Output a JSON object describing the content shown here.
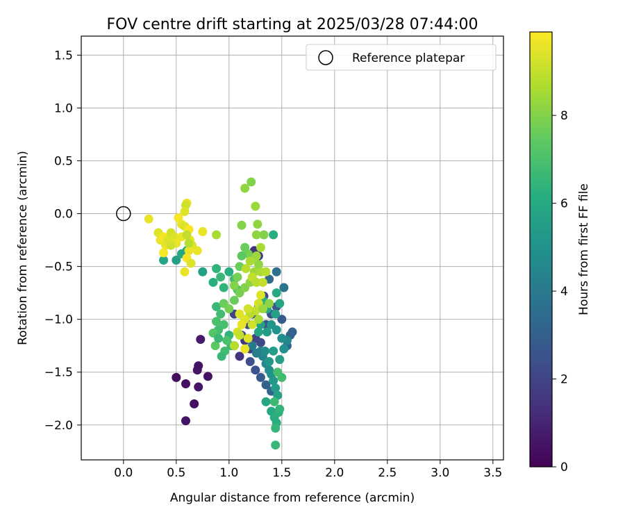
{
  "chart_data": {
    "type": "scatter",
    "title": "FOV centre drift starting at 2025/03/28 07:44:00",
    "xlabel": "Angular distance from reference (arcmin)",
    "ylabel": "Rotation from reference (arcmin)",
    "xlim": [
      -0.4,
      3.6
    ],
    "ylim": [
      -2.33,
      1.68
    ],
    "x_ticks": [
      0.0,
      0.5,
      1.0,
      1.5,
      2.0,
      2.5,
      3.0,
      3.5
    ],
    "x_tick_labels": [
      "0.0",
      "0.5",
      "1.0",
      "1.5",
      "2.0",
      "2.5",
      "3.0",
      "3.5"
    ],
    "y_ticks": [
      1.5,
      1.0,
      0.5,
      0.0,
      -0.5,
      -1.0,
      -1.5,
      -2.0
    ],
    "y_tick_labels": [
      "1.5",
      "1.0",
      "0.5",
      "0.0",
      "−0.5",
      "−1.0",
      "−1.5",
      "−2.0"
    ],
    "grid": true,
    "legend": {
      "position": "top-right",
      "entries": [
        "Reference platepar"
      ]
    },
    "reference_point": {
      "x": 0.0,
      "y": 0.0
    },
    "colormap": "viridis",
    "colorbar": {
      "label": "Hours from first FF file",
      "min": 0,
      "max": 9.9,
      "ticks": [
        0,
        2,
        4,
        6,
        8
      ],
      "tick_labels": [
        "0",
        "2",
        "4",
        "6",
        "8"
      ]
    },
    "points": [
      [
        0.5,
        -1.55,
        0.3
      ],
      [
        0.59,
        -1.61,
        0.4
      ],
      [
        0.59,
        -1.96,
        0.5
      ],
      [
        0.67,
        -1.8,
        0.4
      ],
      [
        0.7,
        -1.48,
        0.6
      ],
      [
        0.71,
        -1.44,
        0.5
      ],
      [
        0.71,
        -1.64,
        0.6
      ],
      [
        0.73,
        -1.19,
        0.7
      ],
      [
        0.8,
        -1.54,
        0.5
      ],
      [
        1.05,
        -1.25,
        1.2
      ],
      [
        1.1,
        -1.35,
        1.5
      ],
      [
        1.15,
        -1.2,
        1.6
      ],
      [
        1.2,
        -1.28,
        1.8
      ],
      [
        1.25,
        -1.18,
        2.0
      ],
      [
        1.3,
        -1.22,
        2.2
      ],
      [
        1.35,
        -1.05,
        2.3
      ],
      [
        1.4,
        -0.95,
        2.5
      ],
      [
        1.45,
        -0.88,
        2.6
      ],
      [
        1.5,
        -1.0,
        2.8
      ],
      [
        1.58,
        -1.15,
        3.0
      ],
      [
        1.6,
        -1.12,
        3.1
      ],
      [
        1.55,
        -1.25,
        3.2
      ],
      [
        1.2,
        -1.4,
        2.4
      ],
      [
        1.25,
        -1.48,
        2.6
      ],
      [
        1.3,
        -1.55,
        2.8
      ],
      [
        1.35,
        -1.62,
        3.0
      ],
      [
        1.4,
        -1.68,
        3.2
      ],
      [
        1.22,
        -0.95,
        2.0
      ],
      [
        1.28,
        -0.88,
        2.1
      ],
      [
        1.33,
        -0.78,
        2.2
      ],
      [
        1.38,
        -0.62,
        3.4
      ],
      [
        1.45,
        -0.55,
        3.6
      ],
      [
        1.52,
        -0.7,
        3.8
      ],
      [
        1.18,
        -1.05,
        2.2
      ],
      [
        1.12,
        -1.15,
        2.4
      ],
      [
        1.05,
        -0.95,
        2.0
      ],
      [
        1.24,
        -0.35,
        1.4
      ],
      [
        1.28,
        -0.4,
        1.6
      ],
      [
        1.3,
        -1.3,
        4.2
      ],
      [
        1.32,
        -1.35,
        4.4
      ],
      [
        1.35,
        -1.42,
        4.6
      ],
      [
        1.38,
        -1.48,
        4.8
      ],
      [
        1.4,
        -1.52,
        5.0
      ],
      [
        1.42,
        -1.58,
        5.2
      ],
      [
        1.44,
        -1.65,
        5.4
      ],
      [
        1.46,
        -1.72,
        5.6
      ],
      [
        1.35,
        -1.78,
        5.8
      ],
      [
        1.4,
        -1.87,
        6.0
      ],
      [
        1.43,
        -1.93,
        6.1
      ],
      [
        1.45,
        -1.98,
        6.2
      ],
      [
        1.47,
        -1.88,
        6.3
      ],
      [
        1.48,
        -1.85,
        6.4
      ],
      [
        1.44,
        -2.03,
        6.5
      ],
      [
        1.44,
        -2.19,
        6.6
      ],
      [
        1.43,
        -1.78,
        6.7
      ],
      [
        1.5,
        -1.55,
        6.8
      ],
      [
        1.46,
        -1.5,
        6.9
      ],
      [
        1.38,
        -1.4,
        5.2
      ],
      [
        1.34,
        -1.3,
        4.8
      ],
      [
        1.42,
        -1.3,
        5.4
      ],
      [
        1.48,
        -1.38,
        5.6
      ],
      [
        1.52,
        -1.28,
        5.0
      ],
      [
        1.55,
        -1.2,
        4.6
      ],
      [
        1.5,
        -1.18,
        4.8
      ],
      [
        1.45,
        -1.1,
        5.0
      ],
      [
        1.4,
        -1.05,
        5.2
      ],
      [
        1.36,
        -1.12,
        5.4
      ],
      [
        1.3,
        -1.05,
        5.6
      ],
      [
        1.28,
        -1.12,
        5.8
      ],
      [
        1.22,
        -1.25,
        4.0
      ],
      [
        1.26,
        -1.32,
        4.2
      ],
      [
        1.48,
        -0.85,
        5.8
      ],
      [
        1.45,
        -0.75,
        6.0
      ],
      [
        1.42,
        -0.2,
        6.2
      ],
      [
        1.44,
        -0.95,
        5.6
      ],
      [
        1.36,
        -0.9,
        6.0
      ],
      [
        1.32,
        -0.82,
        6.2
      ],
      [
        0.38,
        -0.44,
        5.8
      ],
      [
        0.5,
        -0.44,
        5.6
      ],
      [
        0.55,
        -0.38,
        6.0
      ],
      [
        0.6,
        -0.35,
        5.8
      ],
      [
        0.75,
        -0.55,
        5.6
      ],
      [
        0.88,
        -0.52,
        6.4
      ],
      [
        0.92,
        -0.6,
        6.6
      ],
      [
        0.95,
        -0.7,
        6.4
      ],
      [
        1.0,
        -0.55,
        6.2
      ],
      [
        1.05,
        -0.62,
        6.8
      ],
      [
        1.08,
        -0.72,
        7.0
      ],
      [
        0.85,
        -0.65,
        6.2
      ],
      [
        0.88,
        -0.88,
        6.6
      ],
      [
        0.92,
        -0.95,
        6.8
      ],
      [
        0.95,
        -1.05,
        7.0
      ],
      [
        1.0,
        -1.15,
        6.4
      ],
      [
        1.02,
        -1.25,
        6.6
      ],
      [
        0.96,
        -1.3,
        6.8
      ],
      [
        0.93,
        -1.35,
        6.6
      ],
      [
        0.98,
        -1.2,
        7.0
      ],
      [
        0.9,
        -1.1,
        6.8
      ],
      [
        0.88,
        -1.02,
        7.0
      ],
      [
        0.85,
        -1.13,
        7.2
      ],
      [
        0.87,
        -1.25,
        7.4
      ],
      [
        0.9,
        -1.18,
        6.6
      ],
      [
        0.95,
        -0.85,
        7.6
      ],
      [
        1.0,
        -0.9,
        7.8
      ],
      [
        1.05,
        -0.82,
        7.6
      ],
      [
        1.1,
        -0.75,
        7.8
      ],
      [
        1.15,
        -0.7,
        8.0
      ],
      [
        1.2,
        -0.65,
        8.2
      ],
      [
        1.24,
        -0.55,
        8.4
      ],
      [
        1.28,
        -0.48,
        8.2
      ],
      [
        1.22,
        -0.42,
        8.0
      ],
      [
        1.18,
        -0.38,
        7.8
      ],
      [
        1.15,
        -0.32,
        7.6
      ],
      [
        1.12,
        -0.4,
        7.4
      ],
      [
        1.1,
        -0.5,
        7.6
      ],
      [
        1.08,
        -0.6,
        7.8
      ],
      [
        1.05,
        -0.68,
        8.0
      ],
      [
        1.15,
        0.24,
        8.2
      ],
      [
        1.21,
        0.3,
        8.0
      ],
      [
        1.25,
        0.07,
        8.4
      ],
      [
        1.27,
        -0.1,
        8.2
      ],
      [
        1.33,
        -0.2,
        8.0
      ],
      [
        1.26,
        -0.2,
        8.2
      ],
      [
        1.12,
        -0.11,
        8.0
      ],
      [
        1.3,
        -0.32,
        8.6
      ],
      [
        1.26,
        -0.4,
        8.4
      ],
      [
        1.2,
        -0.45,
        8.6
      ],
      [
        1.16,
        -0.52,
        8.8
      ],
      [
        1.22,
        -0.6,
        9.0
      ],
      [
        1.26,
        -0.65,
        8.8
      ],
      [
        1.3,
        -0.55,
        8.6
      ],
      [
        1.32,
        -0.65,
        9.0
      ],
      [
        1.35,
        -0.55,
        8.8
      ],
      [
        1.3,
        -0.77,
        9.4
      ],
      [
        1.28,
        -0.85,
        9.2
      ],
      [
        1.25,
        -0.92,
        9.0
      ],
      [
        1.2,
        -0.95,
        8.8
      ],
      [
        1.18,
        -0.9,
        9.2
      ],
      [
        1.15,
        -1.0,
        9.4
      ],
      [
        1.12,
        -1.05,
        9.6
      ],
      [
        1.1,
        -0.95,
        9.4
      ],
      [
        1.08,
        -1.12,
        9.2
      ],
      [
        1.15,
        -1.28,
        9.6
      ],
      [
        1.18,
        -1.18,
        9.4
      ],
      [
        1.22,
        -1.05,
        9.2
      ],
      [
        1.28,
        -1.0,
        8.6
      ],
      [
        1.32,
        -0.9,
        8.4
      ],
      [
        1.38,
        -0.85,
        8.2
      ],
      [
        1.05,
        -1.25,
        8.8
      ],
      [
        1.1,
        -1.15,
        9.0
      ],
      [
        0.88,
        -0.2,
        8.6
      ],
      [
        0.75,
        -0.17,
        9.6
      ],
      [
        0.24,
        -0.05,
        9.6
      ],
      [
        0.33,
        -0.18,
        9.4
      ],
      [
        0.35,
        -0.25,
        9.6
      ],
      [
        0.38,
        -0.22,
        9.8
      ],
      [
        0.4,
        -0.3,
        9.6
      ],
      [
        0.42,
        -0.25,
        9.4
      ],
      [
        0.45,
        -0.18,
        9.2
      ],
      [
        0.48,
        -0.22,
        9.4
      ],
      [
        0.5,
        -0.28,
        9.6
      ],
      [
        0.52,
        -0.04,
        9.8
      ],
      [
        0.55,
        -0.1,
        9.6
      ],
      [
        0.58,
        -0.12,
        9.4
      ],
      [
        0.6,
        0.1,
        9.6
      ],
      [
        0.59,
        0.08,
        9.2
      ],
      [
        0.58,
        0.02,
        9.4
      ],
      [
        0.62,
        -0.15,
        9.8
      ],
      [
        0.63,
        -0.25,
        9.6
      ],
      [
        0.65,
        -0.3,
        9.4
      ],
      [
        0.62,
        -0.35,
        9.6
      ],
      [
        0.6,
        -0.42,
        9.8
      ],
      [
        0.58,
        -0.55,
        9.6
      ],
      [
        0.64,
        -0.47,
        9.4
      ],
      [
        0.7,
        -0.35,
        9.6
      ],
      [
        0.38,
        -0.37,
        9.8
      ],
      [
        0.45,
        -0.3,
        9.2
      ],
      [
        0.55,
        -0.22,
        9.6
      ],
      [
        0.6,
        -0.2,
        9.0
      ],
      [
        0.62,
        -0.28,
        8.8
      ]
    ]
  }
}
